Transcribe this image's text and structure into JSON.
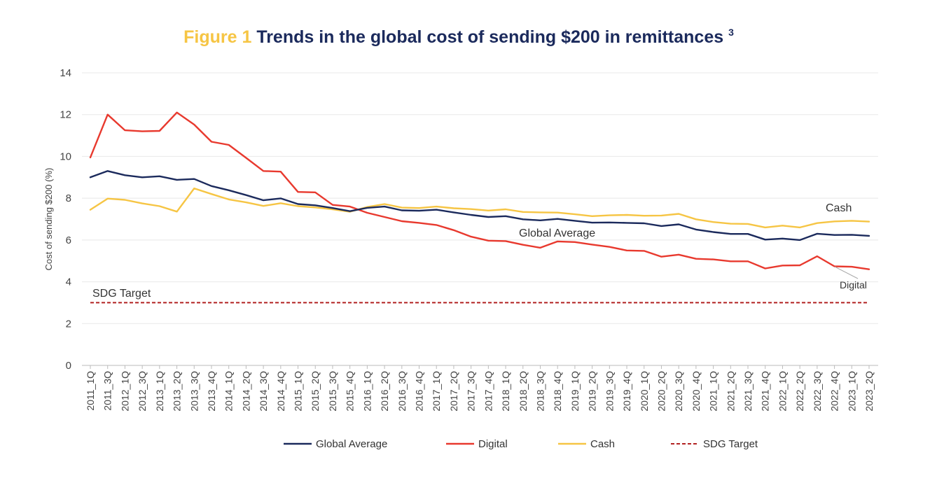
{
  "chart_data": {
    "type": "line",
    "title_prefix": "Figure 1",
    "title_main": "Trends in the global cost of sending $200 in remittances",
    "title_superscript": "3",
    "xlabel": "",
    "ylabel": "Cost of sending $200 (%)",
    "ylim": [
      0,
      14
    ],
    "yticks": [
      0,
      2,
      4,
      6,
      8,
      10,
      12,
      14
    ],
    "grid": true,
    "legend_position": "bottom",
    "categories": [
      "2011_1Q",
      "2011_3Q",
      "2012_1Q",
      "2012_3Q",
      "2013_1Q",
      "2013_2Q",
      "2013_3Q",
      "2013_4Q",
      "2014_1Q",
      "2014_2Q",
      "2014_3Q",
      "2014_4Q",
      "2015_1Q",
      "2015_2Q",
      "2015_3Q",
      "2015_4Q",
      "2016_1Q",
      "2016_2Q",
      "2016_3Q",
      "2016_4Q",
      "2017_1Q",
      "2017_2Q",
      "2017_3Q",
      "2017_4Q",
      "2018_1Q",
      "2018_2Q",
      "2018_3Q",
      "2018_4Q",
      "2019_1Q",
      "2019_2Q",
      "2019_3Q",
      "2019_4Q",
      "2020_1Q",
      "2020_2Q",
      "2020_3Q",
      "2020_4Q",
      "2021_1Q",
      "2021_2Q",
      "2021_3Q",
      "2021_4Q",
      "2022_1Q",
      "2022_2Q",
      "2022_3Q",
      "2022_4Q",
      "2023_1Q",
      "2023_2Q"
    ],
    "series": [
      {
        "name": "Global Average",
        "color": "#1b2a5c",
        "dash": "solid",
        "values": [
          9.0,
          9.3,
          9.1,
          9.0,
          9.05,
          8.88,
          8.92,
          8.58,
          8.38,
          8.15,
          7.9,
          7.99,
          7.72,
          7.66,
          7.53,
          7.38,
          7.54,
          7.6,
          7.42,
          7.4,
          7.45,
          7.32,
          7.2,
          7.1,
          7.14,
          6.99,
          6.94,
          7.01,
          6.92,
          6.83,
          6.84,
          6.82,
          6.8,
          6.67,
          6.75,
          6.5,
          6.38,
          6.29,
          6.29,
          6.02,
          6.07,
          6.0,
          6.3,
          6.24,
          6.25,
          6.2
        ]
      },
      {
        "name": "Digital",
        "color": "#e8392e",
        "dash": "solid",
        "values": [
          9.95,
          12.0,
          11.25,
          11.2,
          11.22,
          12.1,
          11.52,
          10.7,
          10.55,
          9.93,
          9.3,
          9.27,
          8.3,
          8.28,
          7.68,
          7.6,
          7.3,
          7.1,
          6.9,
          6.82,
          6.72,
          6.47,
          6.16,
          5.97,
          5.95,
          5.77,
          5.63,
          5.93,
          5.9,
          5.78,
          5.67,
          5.5,
          5.48,
          5.2,
          5.3,
          5.1,
          5.07,
          4.98,
          4.98,
          4.64,
          4.78,
          4.79,
          5.22,
          4.74,
          4.72,
          4.6
        ]
      },
      {
        "name": "Cash",
        "color": "#f6c544",
        "dash": "solid",
        "values": [
          7.45,
          7.98,
          7.92,
          7.75,
          7.62,
          7.36,
          8.47,
          8.2,
          7.94,
          7.8,
          7.63,
          7.76,
          7.62,
          7.56,
          7.47,
          7.35,
          7.58,
          7.72,
          7.55,
          7.53,
          7.6,
          7.52,
          7.48,
          7.41,
          7.47,
          7.34,
          7.32,
          7.31,
          7.23,
          7.14,
          7.18,
          7.2,
          7.16,
          7.17,
          7.25,
          6.99,
          6.86,
          6.78,
          6.77,
          6.6,
          6.69,
          6.6,
          6.81,
          6.89,
          6.92,
          6.88
        ]
      },
      {
        "name": "SDG Target",
        "color": "#b22222",
        "dash": "dashed",
        "values": [
          3,
          3,
          3,
          3,
          3,
          3,
          3,
          3,
          3,
          3,
          3,
          3,
          3,
          3,
          3,
          3,
          3,
          3,
          3,
          3,
          3,
          3,
          3,
          3,
          3,
          3,
          3,
          3,
          3,
          3,
          3,
          3,
          3,
          3,
          3,
          3,
          3,
          3,
          3,
          3,
          3,
          3,
          3,
          3,
          3,
          3
        ]
      }
    ],
    "annotations": {
      "sdg_target": "SDG Target",
      "global_average": "Global Average",
      "cash": "Cash",
      "digital": "Digital"
    },
    "colors": {
      "title_prefix": "#f6c544",
      "title_main": "#1b2a5c",
      "grid": "#e8e8e8",
      "axis": "#bbbbbb"
    }
  }
}
